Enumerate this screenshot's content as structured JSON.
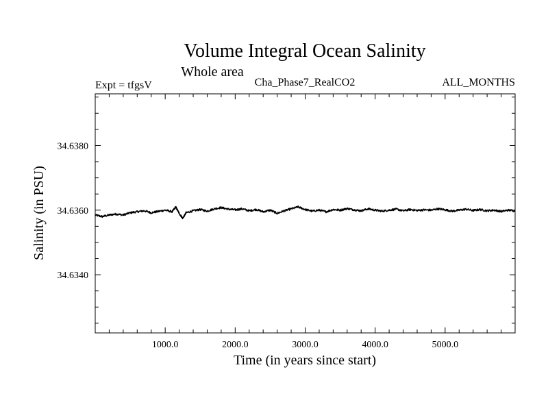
{
  "chart_data": {
    "type": "line",
    "title": "Volume Integral Ocean Salinity",
    "subtitle": "Whole area",
    "annotations": {
      "experiment": "Expt = tfgsV",
      "run": "Cha_Phase7_RealCO2",
      "period": "ALL_MONTHS"
    },
    "xlabel": "Time (in years since start)",
    "ylabel": "Salinity (in PSU)",
    "xlim": [
      0,
      6000
    ],
    "ylim": [
      34.6322,
      34.6396
    ],
    "x_ticks": [
      {
        "value": 1000,
        "label": "1000.0"
      },
      {
        "value": 2000,
        "label": "2000.0"
      },
      {
        "value": 3000,
        "label": "3000.0"
      },
      {
        "value": 4000,
        "label": "4000.0"
      },
      {
        "value": 5000,
        "label": "5000.0"
      }
    ],
    "y_ticks": [
      {
        "value": 34.638,
        "label": "34.6380"
      },
      {
        "value": 34.636,
        "label": "34.6360"
      },
      {
        "value": 34.634,
        "label": "34.6340"
      }
    ],
    "grid": false,
    "series": [
      {
        "name": "Salinity",
        "color": "#000000",
        "x": [
          0,
          100,
          200,
          300,
          400,
          500,
          600,
          700,
          800,
          900,
          1000,
          1100,
          1150,
          1200,
          1250,
          1300,
          1400,
          1500,
          1600,
          1700,
          1800,
          1900,
          2000,
          2100,
          2200,
          2300,
          2400,
          2500,
          2600,
          2700,
          2800,
          2900,
          3000,
          3100,
          3200,
          3300,
          3400,
          3500,
          3600,
          3700,
          3800,
          3900,
          4000,
          4100,
          4200,
          4300,
          4400,
          4500,
          4600,
          4700,
          4800,
          4900,
          5000,
          5100,
          5200,
          5300,
          5400,
          5500,
          5600,
          5700,
          5800,
          5900,
          6000
        ],
        "values": [
          34.63585,
          34.6358,
          34.63585,
          34.63588,
          34.63585,
          34.63592,
          34.63595,
          34.63598,
          34.63592,
          34.63596,
          34.636,
          34.63595,
          34.6361,
          34.6359,
          34.63575,
          34.63592,
          34.63598,
          34.63602,
          34.63597,
          34.63604,
          34.63608,
          34.63603,
          34.63601,
          34.63604,
          34.63598,
          34.63602,
          34.63595,
          34.636,
          34.6359,
          34.63598,
          34.63604,
          34.6361,
          34.63602,
          34.63597,
          34.636,
          34.63595,
          34.63602,
          34.636,
          34.63605,
          34.63601,
          34.63598,
          34.63604,
          34.636,
          34.63597,
          34.636,
          34.63603,
          34.63598,
          34.63602,
          34.63599,
          34.63601,
          34.636,
          34.63604,
          34.63601,
          34.63597,
          34.636,
          34.63603,
          34.63599,
          34.63602,
          34.63598,
          34.636,
          34.63596,
          34.636,
          34.63598
        ]
      }
    ]
  }
}
